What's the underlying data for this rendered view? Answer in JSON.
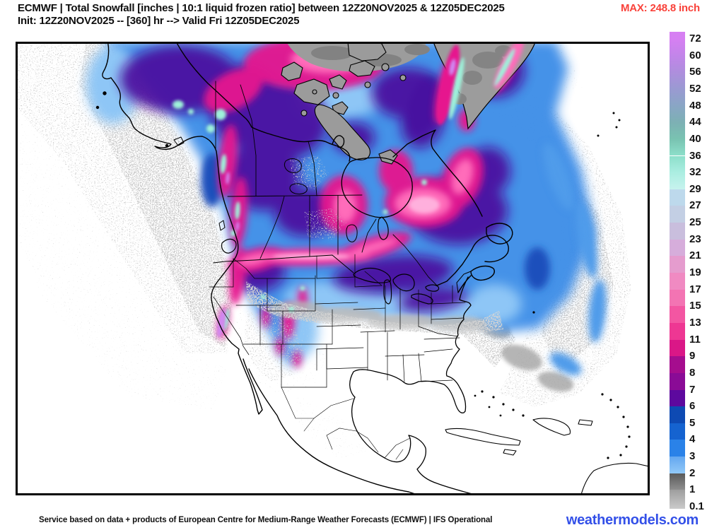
{
  "header": {
    "title": "ECMWF | Total Snowfall [inches | 10:1 liquid frozen ratio] between 12Z20NOV2025 & 12Z05DEC2025",
    "subtitle": "Init: 12Z20NOV2025 -- [360] hr --> Valid Fri 12Z05DEC2025",
    "max_label": "MAX: 248.8 inch",
    "max_color": "#f9423a"
  },
  "footer": {
    "attribution": "Service based on data + products of European Centre for Medium-Range Weather Forecasts (ECMWF) | IFS Operational",
    "brand": "weathermodels.com",
    "brand_color": "#3350e8"
  },
  "map": {
    "region": "North America",
    "field": "Total snowfall (inches, 10:1 ratio)",
    "model": "ECMWF IFS Operational"
  },
  "colorbar": {
    "unit": "inches",
    "cells": [
      {
        "label": "72",
        "color": "#d67ff2"
      },
      {
        "label": "60",
        "color": "#c285e9"
      },
      {
        "label": "56",
        "color": "#ae8edd"
      },
      {
        "label": "52",
        "color": "#9a9ad2"
      },
      {
        "label": "48",
        "color": "#89a6c5"
      },
      {
        "label": "44",
        "color": "#7db0b4"
      },
      {
        "label": "40",
        "color": "#79c3b1"
      },
      {
        "label": "36",
        "color": "#8ddfca"
      },
      {
        "label": "32",
        "color": "#abeee1"
      },
      {
        "label": "29",
        "color": "#c7f3ee"
      },
      {
        "label": "27",
        "color": "#bdd9ec"
      },
      {
        "label": "25",
        "color": "#c3cfe4"
      },
      {
        "label": "23",
        "color": "#c9bedd"
      },
      {
        "label": "21",
        "color": "#d6addb"
      },
      {
        "label": "19",
        "color": "#e59cce"
      },
      {
        "label": "17",
        "color": "#f08ac2"
      },
      {
        "label": "15",
        "color": "#f374b3"
      },
      {
        "label": "13",
        "color": "#f356a2"
      },
      {
        "label": "11",
        "color": "#ee3793"
      },
      {
        "label": "9",
        "color": "#da1787"
      },
      {
        "label": "8",
        "color": "#a50d8e"
      },
      {
        "label": "7",
        "color": "#8a0b96"
      },
      {
        "label": "6",
        "color": "#5d099e"
      },
      {
        "label": "5",
        "color": "#0e4ab3"
      },
      {
        "label": "4",
        "color": "#1563d0"
      },
      {
        "label": "3",
        "color": "#2a82e8"
      },
      {
        "label": "2",
        "color": "#63a7f0",
        "color2": "#92c9f8"
      },
      {
        "label": "1",
        "color": "#5a5a5a",
        "color2": "#8e8e8e"
      },
      {
        "label": "0.1",
        "color": "#9e9e9e",
        "color2": "#cacaca"
      }
    ]
  }
}
